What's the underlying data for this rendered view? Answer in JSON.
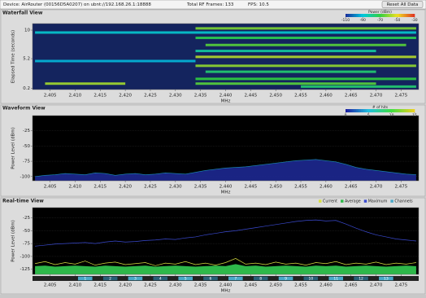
{
  "header": {
    "device": "Device: AirRouter (00156D5A0207) on ubnt://192.168.26.1:18888",
    "frames": "Total RF Frames: 133",
    "fps": "FPS: 10.5",
    "reset": "Reset All Data"
  },
  "chart_data": [
    {
      "type": "heatmap",
      "title": "Waterfall View",
      "x_label": "MHz",
      "y_label": "Elapsed Time (seconds)",
      "xlim": [
        2401.5,
        2478.5
      ],
      "xticks": [
        {
          "value": 2405,
          "label": "2,405"
        },
        {
          "value": 2410,
          "label": "2,410"
        },
        {
          "value": 2415,
          "label": "2,415"
        },
        {
          "value": 2420,
          "label": "2,420"
        },
        {
          "value": 2425,
          "label": "2,425"
        },
        {
          "value": 2430,
          "label": "2,430"
        },
        {
          "value": 2435,
          "label": "2,435"
        },
        {
          "value": 2440,
          "label": "2,440"
        },
        {
          "value": 2445,
          "label": "2,445"
        },
        {
          "value": 2450,
          "label": "2,450"
        },
        {
          "value": 2455,
          "label": "2,455"
        },
        {
          "value": 2460,
          "label": "2,460"
        },
        {
          "value": 2465,
          "label": "2,465"
        },
        {
          "value": 2470,
          "label": "2,470"
        },
        {
          "value": 2475,
          "label": "2,475"
        }
      ],
      "ylim": [
        0,
        11.1
      ],
      "yticks": [
        10,
        5.2,
        0.2
      ],
      "legend_title": "Power (dBm)",
      "colorbar_ticks": [
        -110,
        -90,
        -70,
        -50,
        -30
      ],
      "colorscale": [
        "#1a2a9a",
        "#00c8e0",
        "#30d040",
        "#f0e020",
        "#e03020"
      ],
      "background": "#14245e",
      "bands": [
        {
          "t": 10.3,
          "x0": 2434,
          "x1": 2478,
          "p": -62
        },
        {
          "t": 9.6,
          "x0": 2402,
          "x1": 2478,
          "p": -88
        },
        {
          "t": 8.7,
          "x0": 2434,
          "x1": 2478,
          "p": -72
        },
        {
          "t": 7.5,
          "x0": 2436,
          "x1": 2476,
          "p": -66
        },
        {
          "t": 6.5,
          "x0": 2434,
          "x1": 2470,
          "p": -82
        },
        {
          "t": 5.5,
          "x0": 2434,
          "x1": 2478,
          "p": -56
        },
        {
          "t": 4.8,
          "x0": 2402,
          "x1": 2434,
          "p": -92
        },
        {
          "t": 4.0,
          "x0": 2434,
          "x1": 2478,
          "p": -60
        },
        {
          "t": 3.0,
          "x0": 2436,
          "x1": 2470,
          "p": -76
        },
        {
          "t": 1.8,
          "x0": 2434,
          "x1": 2478,
          "p": -70
        },
        {
          "t": 1.0,
          "x0": 2404,
          "x1": 2420,
          "p": -58
        },
        {
          "t": 1.0,
          "x0": 2434,
          "x1": 2470,
          "p": -66
        },
        {
          "t": 0.5,
          "x0": 2455,
          "x1": 2478,
          "p": -76
        }
      ]
    },
    {
      "type": "area",
      "title": "Waveform View",
      "x_label": "MHz",
      "y_label": "Power Level (dBm)",
      "xlim": [
        2401.5,
        2478.5
      ],
      "xticks": [
        {
          "value": 2405,
          "label": "2,405"
        },
        {
          "value": 2410,
          "label": "2,410"
        },
        {
          "value": 2415,
          "label": "2,415"
        },
        {
          "value": 2420,
          "label": "2,420"
        },
        {
          "value": 2425,
          "label": "2,425"
        },
        {
          "value": 2430,
          "label": "2,430"
        },
        {
          "value": 2435,
          "label": "2,435"
        },
        {
          "value": 2440,
          "label": "2,440"
        },
        {
          "value": 2445,
          "label": "2,445"
        },
        {
          "value": 2450,
          "label": "2,450"
        },
        {
          "value": 2455,
          "label": "2,455"
        },
        {
          "value": 2460,
          "label": "2,460"
        },
        {
          "value": 2465,
          "label": "2,465"
        },
        {
          "value": 2470,
          "label": "2,470"
        },
        {
          "value": 2475,
          "label": "2,475"
        }
      ],
      "ylim": [
        -107,
        0
      ],
      "yticks": [
        -25,
        -50,
        -75,
        -100
      ],
      "legend_title": "# of hits",
      "colorbar_ticks": [
        0,
        5,
        10,
        15
      ],
      "colorscale": [
        "#1a1aa0",
        "#20c0e0",
        "#40e040",
        "#f0d020"
      ],
      "color": "#1e2a9a",
      "x": [
        2402,
        2404,
        2406,
        2408,
        2410,
        2412,
        2414,
        2416,
        2418,
        2420,
        2422,
        2424,
        2426,
        2428,
        2430,
        2432,
        2434,
        2436,
        2438,
        2440,
        2442,
        2444,
        2446,
        2448,
        2450,
        2452,
        2454,
        2456,
        2458,
        2460,
        2462,
        2464,
        2466,
        2468,
        2470,
        2472,
        2474,
        2476,
        2478
      ],
      "values": [
        -100,
        -98,
        -97,
        -95,
        -96,
        -97,
        -94,
        -95,
        -98,
        -96,
        -95,
        -97,
        -96,
        -94,
        -95,
        -96,
        -93,
        -90,
        -88,
        -86,
        -85,
        -84,
        -82,
        -80,
        -78,
        -76,
        -74,
        -73,
        -72,
        -74,
        -76,
        -80,
        -85,
        -88,
        -90,
        -92,
        -94,
        -96,
        -97
      ]
    },
    {
      "type": "line",
      "title": "Real-time View",
      "x_label": "MHz",
      "y_label": "Power Level (dBm)",
      "xlim": [
        2401.5,
        2478.5
      ],
      "xticks": [
        {
          "value": 2405,
          "label": "2,405"
        },
        {
          "value": 2410,
          "label": "2,410"
        },
        {
          "value": 2415,
          "label": "2,415"
        },
        {
          "value": 2420,
          "label": "2,420"
        },
        {
          "value": 2425,
          "label": "2,425"
        },
        {
          "value": 2430,
          "label": "2,430"
        },
        {
          "value": 2435,
          "label": "2,435"
        },
        {
          "value": 2440,
          "label": "2,440"
        },
        {
          "value": 2445,
          "label": "2,445"
        },
        {
          "value": 2450,
          "label": "2,450"
        },
        {
          "value": 2455,
          "label": "2,455"
        },
        {
          "value": 2460,
          "label": "2,460"
        },
        {
          "value": 2465,
          "label": "2,465"
        },
        {
          "value": 2470,
          "label": "2,470"
        },
        {
          "value": 2475,
          "label": "2,475"
        }
      ],
      "ylim": [
        -135,
        -5
      ],
      "yticks": [
        -25,
        -50,
        -75,
        -100,
        -125
      ],
      "x": [
        2402,
        2404,
        2406,
        2408,
        2410,
        2412,
        2414,
        2416,
        2418,
        2420,
        2422,
        2424,
        2426,
        2428,
        2430,
        2432,
        2434,
        2436,
        2438,
        2440,
        2442,
        2444,
        2446,
        2448,
        2450,
        2452,
        2454,
        2456,
        2458,
        2460,
        2462,
        2464,
        2466,
        2468,
        2470,
        2472,
        2474,
        2476,
        2478
      ],
      "series": [
        {
          "name": "Current",
          "color": "#d8e040",
          "values": [
            -114,
            -110,
            -116,
            -112,
            -115,
            -109,
            -117,
            -113,
            -111,
            -116,
            -114,
            -112,
            -118,
            -113,
            -115,
            -110,
            -116,
            -113,
            -117,
            -112,
            -104,
            -115,
            -113,
            -116,
            -111,
            -115,
            -113,
            -117,
            -112,
            -114,
            -110,
            -116,
            -113,
            -115,
            -111,
            -116,
            -113,
            -115,
            -112
          ]
        },
        {
          "name": "Average",
          "color": "#2eb84a",
          "values": [
            -119,
            -118,
            -120,
            -119,
            -118,
            -119,
            -120,
            -118,
            -119,
            -120,
            -119,
            -118,
            -120,
            -119,
            -118,
            -119,
            -120,
            -119,
            -118,
            -119,
            -115,
            -119,
            -118,
            -120,
            -119,
            -118,
            -119,
            -120,
            -118,
            -119,
            -118,
            -120,
            -119,
            -118,
            -119,
            -120,
            -119,
            -118,
            -119
          ]
        },
        {
          "name": "Maximum",
          "color": "#3a4ad0",
          "values": [
            -80,
            -78,
            -76,
            -75,
            -74,
            -73,
            -75,
            -72,
            -70,
            -72,
            -71,
            -69,
            -68,
            -66,
            -67,
            -64,
            -62,
            -58,
            -55,
            -52,
            -50,
            -47,
            -44,
            -41,
            -38,
            -35,
            -32,
            -30,
            -29,
            -31,
            -30,
            -37,
            -45,
            -52,
            -58,
            -62,
            -66,
            -68,
            -70
          ]
        }
      ],
      "channels": {
        "name": "Channels",
        "color": "#4aa8c8",
        "labels": [
          "1",
          "2",
          "3",
          "4",
          "5",
          "6",
          "7",
          "8",
          "9",
          "10",
          "11",
          "12",
          "13"
        ],
        "freqs": [
          2412,
          2417,
          2422,
          2427,
          2432,
          2437,
          2442,
          2447,
          2452,
          2457,
          2462,
          2467,
          2472
        ]
      }
    }
  ]
}
